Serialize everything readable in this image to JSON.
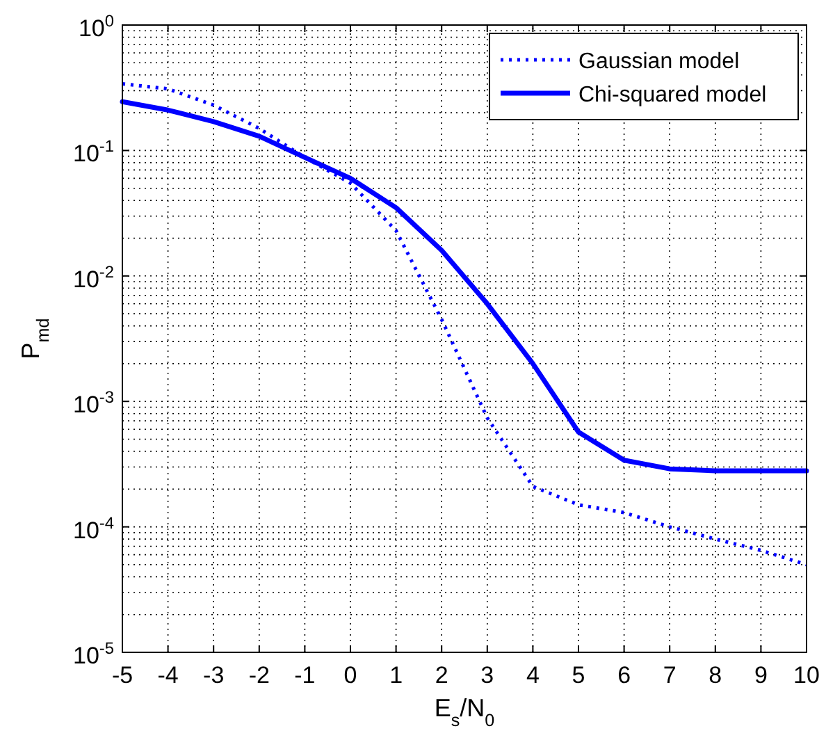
{
  "chart_data": {
    "type": "line",
    "xlabel": "E$_{s}$/N$_{0}$",
    "ylabel": "P$_{md}$",
    "x": [
      -5,
      -4,
      -3,
      -2,
      -1,
      0,
      1,
      2,
      3,
      4,
      5,
      6,
      7,
      8,
      9,
      10
    ],
    "series": [
      {
        "name": "Gaussian model",
        "color": "#0000ff",
        "line_style": "dotted",
        "values": [
          0.34,
          0.31,
          0.23,
          0.15,
          0.088,
          0.055,
          0.023,
          0.0045,
          0.00074,
          0.00021,
          0.00015,
          0.00013,
          0.0001,
          8e-05,
          6.5e-05,
          5e-05
        ]
      },
      {
        "name": "Chi-squared model",
        "color": "#0000ff",
        "line_style": "solid",
        "values": [
          0.245,
          0.21,
          0.17,
          0.13,
          0.088,
          0.06,
          0.035,
          0.016,
          0.006,
          0.002,
          0.00057,
          0.00034,
          0.00029,
          0.00028,
          0.00028,
          0.00028
        ]
      }
    ],
    "log": "y",
    "grid": true,
    "legend": "top right",
    "xlim": [
      -5,
      10
    ],
    "xticks": [
      -5,
      -4,
      -3,
      -2,
      -1,
      0,
      1,
      2,
      3,
      4,
      5,
      6,
      7,
      8,
      9,
      10
    ],
    "ylim": [
      1e-05,
      1
    ],
    "yticks": [
      {
        "value": 1e-05,
        "label": "10$^{-5}$"
      },
      {
        "value": 0.0001,
        "label": "10$^{-4}$"
      },
      {
        "value": 0.001,
        "label": "10$^{-3}$"
      },
      {
        "value": 0.01,
        "label": "10$^{-2}$"
      },
      {
        "value": 0.1,
        "label": "10$^{-1}$"
      },
      {
        "value": 1,
        "label": "10$^{0}$"
      }
    ]
  }
}
